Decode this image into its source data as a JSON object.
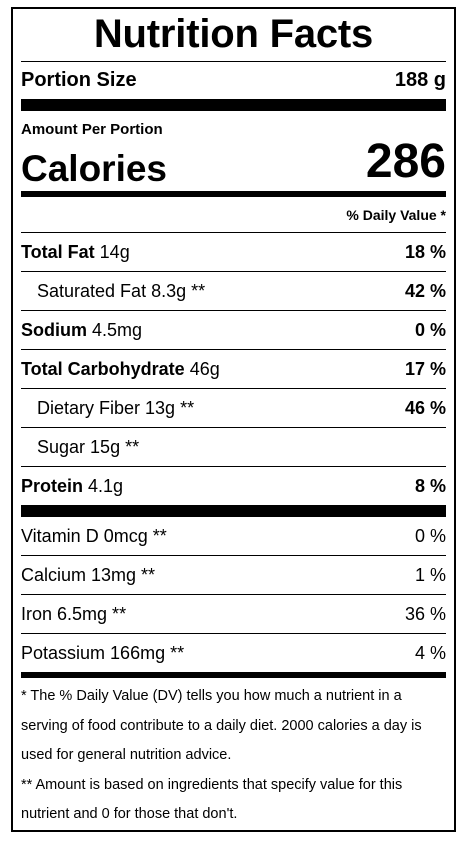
{
  "title": "Nutrition Facts",
  "portion": {
    "label": "Portion Size",
    "value": "188 g"
  },
  "amount_per_portion": "Amount Per Portion",
  "calories": {
    "label": "Calories",
    "value": "286"
  },
  "dv_header": "% Daily Value *",
  "nutrients": [
    {
      "name": "Total Fat",
      "amount": " 14g",
      "pct": "18 %"
    },
    {
      "name": "Saturated Fat",
      "amount": " 8.3g **",
      "pct": "42 %"
    },
    {
      "name": "Sodium",
      "amount": " 4.5mg",
      "pct": "0 %"
    },
    {
      "name": "Total Carbohydrate",
      "amount": " 46g",
      "pct": "17 %"
    },
    {
      "name": "Dietary Fiber",
      "amount": " 13g **",
      "pct": "46 %"
    },
    {
      "name": "Sugar",
      "amount": " 15g **",
      "pct": ""
    },
    {
      "name": "Protein",
      "amount": " 4.1g",
      "pct": "8 %"
    }
  ],
  "vitamins": [
    {
      "name": "Vitamin D",
      "amount": " 0mcg **",
      "pct": "0 %"
    },
    {
      "name": "Calcium",
      "amount": " 13mg **",
      "pct": "1 %"
    },
    {
      "name": "Iron",
      "amount": " 6.5mg **",
      "pct": "36 %"
    },
    {
      "name": "Potassium",
      "amount": " 166mg **",
      "pct": "4 %"
    }
  ],
  "footnotes": [
    "* The % Daily Value (DV) tells you how much a nutrient in a serving of food contribute to a daily diet. 2000 calories a day is used for general nutrition advice.",
    "** Amount is based on ingredients that specify value for this nutrient and 0 for those that don't."
  ]
}
